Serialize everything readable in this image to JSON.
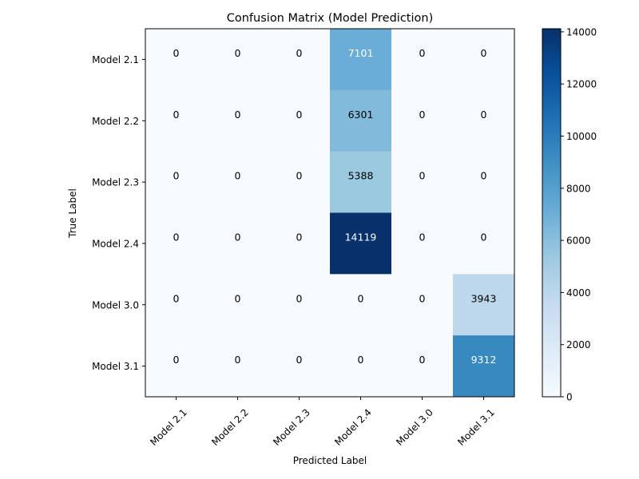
{
  "chart_data": {
    "type": "heatmap",
    "title": "Confusion Matrix (Model Prediction)",
    "xlabel": "Predicted Label",
    "ylabel": "True Label",
    "x_categories": [
      "Model 2.1",
      "Model 2.2",
      "Model 2.3",
      "Model 2.4",
      "Model 3.0",
      "Model 3.1"
    ],
    "y_categories": [
      "Model 2.1",
      "Model 2.2",
      "Model 2.3",
      "Model 2.4",
      "Model 3.0",
      "Model 3.1"
    ],
    "matrix": [
      [
        0,
        0,
        0,
        7101,
        0,
        0
      ],
      [
        0,
        0,
        0,
        6301,
        0,
        0
      ],
      [
        0,
        0,
        0,
        5388,
        0,
        0
      ],
      [
        0,
        0,
        0,
        14119,
        0,
        0
      ],
      [
        0,
        0,
        0,
        0,
        0,
        3943
      ],
      [
        0,
        0,
        0,
        0,
        0,
        9312
      ]
    ],
    "colorbar": {
      "colormap": "Blues",
      "range": [
        0,
        14119
      ],
      "ticks": [
        0,
        2000,
        4000,
        6000,
        8000,
        10000,
        12000,
        14000
      ]
    },
    "grid": false,
    "legend": "none"
  }
}
